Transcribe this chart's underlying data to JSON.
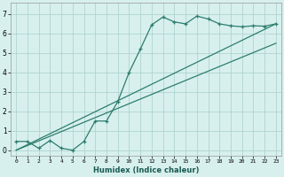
{
  "xlabel": "Humidex (Indice chaleur)",
  "bg_color": "#d7f0ee",
  "grid_color": "#b0d4d0",
  "line_color": "#2d7d6e",
  "xlim": [
    -0.5,
    23.5
  ],
  "ylim": [
    -0.3,
    7.6
  ],
  "xticks": [
    0,
    1,
    2,
    3,
    4,
    5,
    6,
    7,
    8,
    9,
    10,
    11,
    12,
    13,
    14,
    15,
    16,
    17,
    18,
    19,
    20,
    21,
    22,
    23
  ],
  "yticks": [
    0,
    1,
    2,
    3,
    4,
    5,
    6,
    7
  ],
  "line1_x": [
    0,
    1,
    2,
    3,
    4,
    5,
    6,
    7,
    8,
    9,
    10,
    11,
    12,
    13,
    14,
    15,
    16,
    17,
    18,
    19,
    20,
    21,
    22,
    23
  ],
  "line1_y": [
    0.45,
    0.45,
    0.1,
    0.5,
    0.1,
    0.0,
    0.45,
    1.5,
    1.5,
    2.5,
    4.0,
    5.2,
    6.45,
    6.85,
    6.6,
    6.5,
    6.9,
    6.75,
    6.5,
    6.4,
    6.35,
    6.4,
    6.38,
    6.5
  ],
  "line2_x": [
    0,
    23
  ],
  "line2_y": [
    0.0,
    6.5
  ],
  "line3_x": [
    0,
    23
  ],
  "line3_y": [
    0.0,
    5.5
  ]
}
